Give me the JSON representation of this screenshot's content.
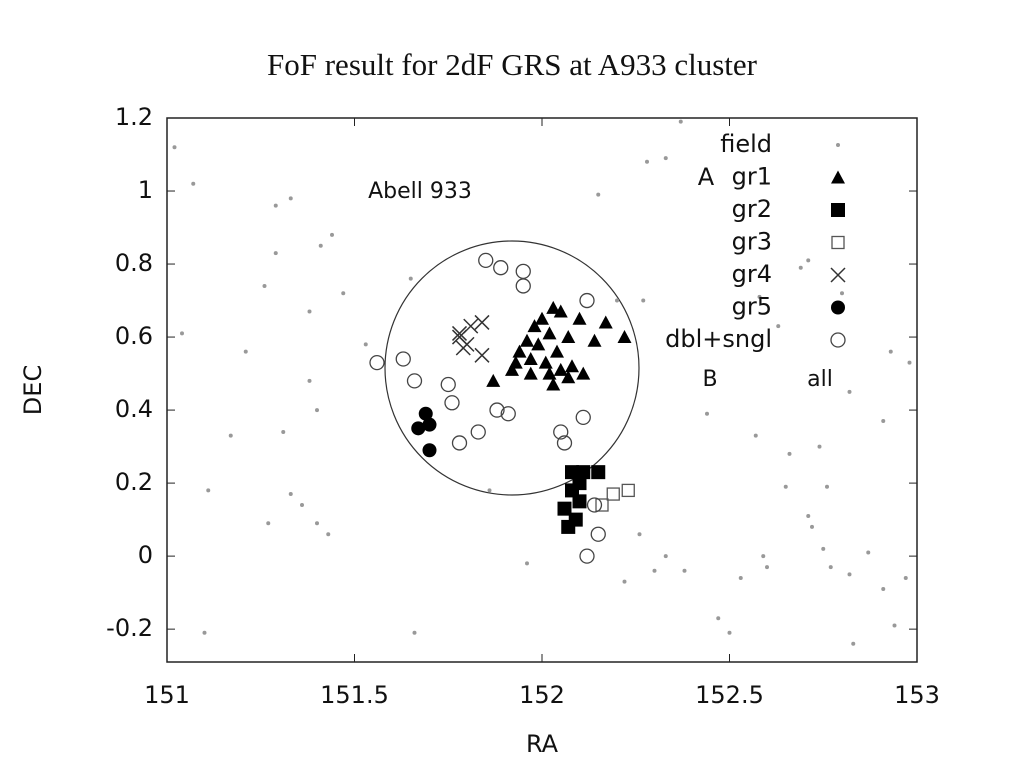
{
  "chart_data": {
    "type": "scatter",
    "title": "FoF result for 2dF  GRS at  A933 cluster",
    "xlabel": "RA",
    "ylabel": "DEC",
    "xlim": [
      151,
      153
    ],
    "ylim": [
      -0.29,
      1.2
    ],
    "xticks": [
      151,
      151.5,
      152,
      152.5,
      153
    ],
    "yticks": [
      -0.2,
      0,
      0.2,
      0.4,
      0.6,
      0.8,
      1,
      1.2
    ],
    "legend": "upper right",
    "annotations": [
      "Abell 933",
      "A",
      "B",
      "all"
    ],
    "series": [
      {
        "name": "field",
        "color": "#999999",
        "marker": "dot",
        "x": [
          151.02,
          151.07,
          151.29,
          151.33,
          151.44,
          151.41,
          151.29,
          151.26,
          151.38,
          151.47,
          151.04,
          151.21,
          151.53,
          151.38,
          151.17,
          151.31,
          151.4,
          151.33,
          151.36,
          151.27,
          151.4,
          151.43,
          151.11,
          151.1,
          151.66,
          151.65,
          152.15,
          152.37,
          152.28,
          152.33,
          152.2,
          152.27,
          152.58,
          152.69,
          152.71,
          152.63,
          152.8,
          152.93,
          152.98,
          152.44,
          152.57,
          152.74,
          152.66,
          152.65,
          152.76,
          152.71,
          152.72,
          152.75,
          152.59,
          152.6,
          152.53,
          152.77,
          152.82,
          152.87,
          152.91,
          152.97,
          152.47,
          152.5,
          152.83,
          152.94,
          152.26,
          152.3,
          152.33,
          152.38,
          152.22,
          151.96,
          151.86,
          152.82,
          152.91
        ],
        "values": [
          1.12,
          1.02,
          0.96,
          0.98,
          0.88,
          0.85,
          0.83,
          0.74,
          0.67,
          0.72,
          0.61,
          0.56,
          0.58,
          0.48,
          0.33,
          0.34,
          0.4,
          0.17,
          0.14,
          0.09,
          0.09,
          0.06,
          0.18,
          -0.21,
          -0.21,
          0.76,
          0.99,
          1.19,
          1.08,
          1.09,
          0.7,
          0.7,
          0.71,
          0.79,
          0.81,
          0.63,
          0.72,
          0.56,
          0.53,
          0.39,
          0.33,
          0.3,
          0.28,
          0.19,
          0.19,
          0.11,
          0.08,
          0.02,
          0,
          -0.03,
          -0.06,
          -0.03,
          -0.05,
          0.01,
          -0.09,
          -0.06,
          -0.17,
          -0.21,
          -0.24,
          -0.19,
          0.06,
          -0.04,
          0,
          -0.04,
          -0.07,
          -0.02,
          0.18,
          0.45,
          0.37
        ]
      },
      {
        "name": "gr1",
        "color": "#000000",
        "marker": "triangle",
        "x": [
          152.03,
          152,
          152.05,
          152.1,
          152.17,
          151.98,
          152.02,
          152.07,
          151.96,
          151.99,
          152.04,
          152.14,
          152.22,
          151.94,
          151.97,
          151.93,
          152.01,
          152.05,
          152.08,
          152.11,
          152.02,
          151.97,
          151.92,
          151.87,
          152.03,
          152.07
        ],
        "values": [
          0.68,
          0.65,
          0.67,
          0.65,
          0.64,
          0.63,
          0.61,
          0.6,
          0.59,
          0.58,
          0.56,
          0.59,
          0.6,
          0.56,
          0.54,
          0.53,
          0.53,
          0.51,
          0.52,
          0.5,
          0.5,
          0.5,
          0.51,
          0.48,
          0.47,
          0.49
        ]
      },
      {
        "name": "gr2",
        "color": "#000000",
        "marker": "square",
        "x": [
          152.08,
          152.11,
          152.15,
          152.1,
          152.08,
          152.1,
          152.06,
          152.09,
          152.07
        ],
        "values": [
          0.23,
          0.23,
          0.23,
          0.2,
          0.18,
          0.15,
          0.13,
          0.1,
          0.08
        ]
      },
      {
        "name": "gr3",
        "color": "#555555",
        "marker": "open-square",
        "x": [
          152.16,
          152.19,
          152.23
        ],
        "values": [
          0.14,
          0.17,
          0.18
        ]
      },
      {
        "name": "gr4",
        "color": "#333333",
        "marker": "x",
        "x": [
          151.78,
          151.81,
          151.84,
          151.79,
          151.8,
          151.84,
          151.78
        ],
        "values": [
          0.61,
          0.63,
          0.64,
          0.57,
          0.58,
          0.55,
          0.6
        ]
      },
      {
        "name": "gr5",
        "color": "#000000",
        "marker": "circle",
        "x": [
          151.69,
          151.67,
          151.7,
          151.7
        ],
        "values": [
          0.39,
          0.35,
          0.36,
          0.29
        ]
      },
      {
        "name": "dbl+sngl",
        "color": "#444444",
        "marker": "open-circle",
        "x": [
          151.85,
          151.89,
          151.95,
          151.95,
          152.12,
          151.56,
          151.63,
          151.66,
          151.75,
          151.76,
          151.78,
          151.83,
          151.88,
          151.91,
          152.05,
          152.06,
          152.11,
          152.14,
          152.15,
          152.12
        ],
        "values": [
          0.81,
          0.79,
          0.78,
          0.74,
          0.7,
          0.53,
          0.54,
          0.48,
          0.47,
          0.42,
          0.31,
          0.34,
          0.4,
          0.39,
          0.34,
          0.31,
          0.38,
          0.14,
          0.06,
          0
        ]
      }
    ]
  }
}
